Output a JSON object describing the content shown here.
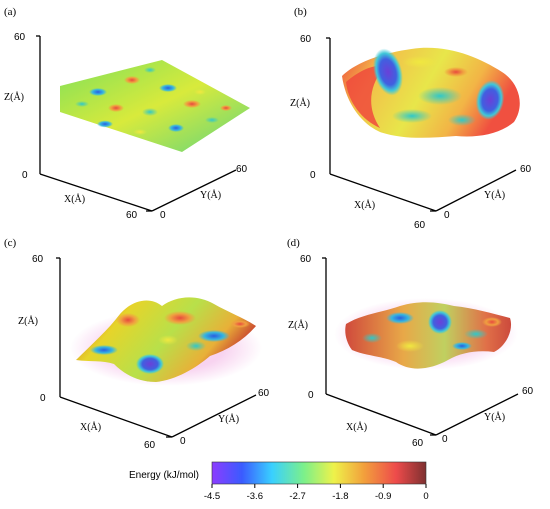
{
  "chart_data": {
    "type": "3d-surface",
    "panels": [
      {
        "label": "(a)",
        "z_tick_top": "60",
        "origin_tick": "0",
        "z_axis_label": "Z(Å)",
        "x_axis_label": "X(Å)",
        "x_tick": "60",
        "y_axis_label": "Y(Å)",
        "y_tick": "60",
        "y_zero_tick": "0",
        "surface": "flat sheet",
        "dominant_colors": [
          "#36c9a0",
          "#e8e83a",
          "#2e7fd8",
          "#e05050"
        ]
      },
      {
        "label": "(b)",
        "z_tick_top": "60",
        "origin_tick": "0",
        "z_axis_label": "Z(Å)",
        "x_axis_label": "X(Å)",
        "x_tick": "60",
        "y_axis_label": "Y(Å)",
        "y_tick": "60",
        "y_zero_tick": "0",
        "surface": "bowl",
        "dominant_colors": [
          "#f05a4a",
          "#f0e040",
          "#7a3fd0",
          "#39c9c9"
        ]
      },
      {
        "label": "(c)",
        "z_tick_top": "60",
        "origin_tick": "0",
        "z_axis_label": "Z(Å)",
        "x_axis_label": "X(Å)",
        "x_tick": "60",
        "y_axis_label": "Y(Å)",
        "y_tick": "60",
        "y_zero_tick": "0",
        "surface": "wrinkled",
        "dominant_colors": [
          "#e0d020",
          "#c84030",
          "#2a5fd0",
          "#a0e050"
        ]
      },
      {
        "label": "(d)",
        "z_tick_top": "60",
        "origin_tick": "0",
        "z_axis_label": "Z(Å)",
        "x_axis_label": "X(Å)",
        "x_tick": "60",
        "y_axis_label": "Y(Å)",
        "y_tick": "60",
        "y_zero_tick": "0",
        "surface": "wavy bowl",
        "dominant_colors": [
          "#d05040",
          "#e8a040",
          "#3a58d8",
          "#b8d060"
        ]
      }
    ],
    "colorbar": {
      "title": "Energy (kJ/mol)",
      "ticks": [
        "-4.5",
        "-3.6",
        "-2.7",
        "-1.8",
        "-0.9",
        "0"
      ],
      "range": [
        -4.5,
        0
      ],
      "colors": [
        "#8c3cff",
        "#3a5bff",
        "#39d0ff",
        "#7cf08a",
        "#eef24a",
        "#f2a03c",
        "#ee4b4b",
        "#7e3030"
      ]
    }
  }
}
